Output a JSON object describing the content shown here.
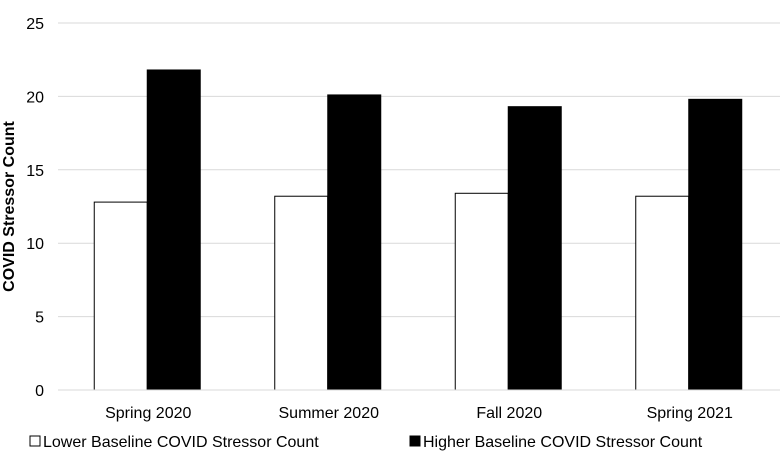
{
  "chart_data": {
    "type": "bar",
    "title": "",
    "xlabel": "",
    "ylabel": "COVID Stressor Count",
    "categories": [
      "Spring 2020",
      "Summer 2020",
      "Fall 2020",
      "Spring 2021"
    ],
    "series": [
      {
        "name": "Lower Baseline COVID Stressor Count",
        "values": [
          12.8,
          13.2,
          13.4,
          13.2
        ],
        "color": "#ffffff"
      },
      {
        "name": "Higher Baseline COVID Stressor Count",
        "values": [
          21.8,
          20.1,
          19.3,
          19.8
        ],
        "color": "#000000"
      }
    ],
    "ylim": [
      0,
      25
    ],
    "yticks": [
      0,
      5,
      10,
      15,
      20,
      25
    ],
    "grid": true,
    "legend_position": "bottom"
  }
}
